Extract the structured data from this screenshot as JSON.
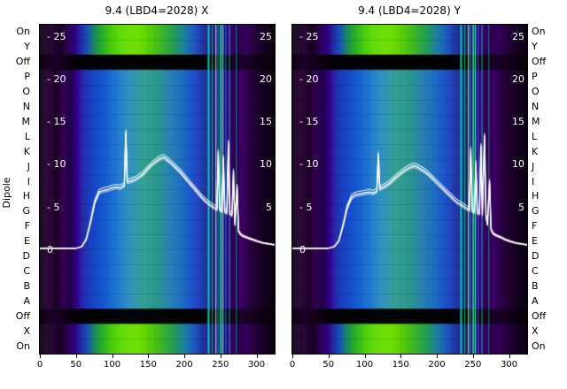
{
  "figure": {
    "background": "#ffffff",
    "dipole_label": "Dipole",
    "row_labels": [
      "On",
      "Y",
      "Off",
      "P",
      "O",
      "N",
      "M",
      "L",
      "K",
      "J",
      "I",
      "H",
      "G",
      "F",
      "E",
      "D",
      "C",
      "B",
      "A",
      "Off",
      "X",
      "On"
    ],
    "value_tick_labels_left": [
      "- 25",
      "- 20",
      "- 15",
      "- 10",
      "- 5",
      "0"
    ],
    "value_tick_values_left": [
      25,
      20,
      15,
      10,
      5,
      0
    ],
    "value_tick_labels_right": [
      "25",
      "20",
      "15",
      "10",
      "5"
    ],
    "value_tick_values_right": [
      25,
      20,
      15,
      10,
      5
    ],
    "x_tick_labels": [
      "0",
      "50",
      "100",
      "150",
      "200",
      "250",
      "300"
    ],
    "x_tick_values": [
      0,
      50,
      100,
      150,
      200,
      250,
      300
    ],
    "x_range": [
      0,
      325
    ],
    "value_range": [
      0,
      25
    ],
    "trace_color": "#ffffff",
    "text_color": "#000000"
  },
  "chart_data": [
    {
      "type": "heatmap",
      "title": "9.4 (LBD4=2028) X",
      "x_range": [
        0,
        325
      ],
      "x_ticks": [
        0,
        50,
        100,
        150,
        200,
        250,
        300
      ],
      "value_ticks": [
        0,
        5,
        10,
        15,
        20,
        25
      ],
      "row_labels": [
        "On",
        "Y",
        "Off",
        "P",
        "O",
        "N",
        "M",
        "L",
        "K",
        "J",
        "I",
        "H",
        "G",
        "F",
        "E",
        "D",
        "C",
        "B",
        "A",
        "Off",
        "X",
        "On"
      ],
      "overlay_line": {
        "name": "white-trace",
        "color": "#ffffff",
        "points": [
          [
            0,
            0.2
          ],
          [
            50,
            0.2
          ],
          [
            58,
            0.4
          ],
          [
            64,
            1.2
          ],
          [
            70,
            3.2
          ],
          [
            76,
            5.6
          ],
          [
            82,
            6.8
          ],
          [
            88,
            7.0
          ],
          [
            94,
            7.1
          ],
          [
            100,
            7.3
          ],
          [
            106,
            7.4
          ],
          [
            112,
            7.3
          ],
          [
            117,
            7.6
          ],
          [
            119,
            13.8
          ],
          [
            121,
            8.0
          ],
          [
            126,
            8.1
          ],
          [
            132,
            8.3
          ],
          [
            138,
            8.6
          ],
          [
            144,
            9.0
          ],
          [
            150,
            9.6
          ],
          [
            156,
            10.1
          ],
          [
            162,
            10.5
          ],
          [
            168,
            10.8
          ],
          [
            172,
            10.9
          ],
          [
            176,
            10.6
          ],
          [
            182,
            10.2
          ],
          [
            188,
            9.7
          ],
          [
            194,
            9.2
          ],
          [
            200,
            8.6
          ],
          [
            206,
            8.0
          ],
          [
            212,
            7.4
          ],
          [
            218,
            6.8
          ],
          [
            224,
            6.2
          ],
          [
            230,
            5.7
          ],
          [
            236,
            5.3
          ],
          [
            241,
            5.0
          ],
          [
            245,
            4.8
          ],
          [
            247,
            11.5
          ],
          [
            249,
            4.7
          ],
          [
            252,
            4.6
          ],
          [
            254,
            10.8
          ],
          [
            256,
            4.5
          ],
          [
            259,
            4.4
          ],
          [
            261,
            12.6
          ],
          [
            263,
            4.3
          ],
          [
            266,
            4.1
          ],
          [
            268,
            9.2
          ],
          [
            270,
            3.0
          ],
          [
            273,
            7.4
          ],
          [
            275,
            2.2
          ],
          [
            278,
            1.8
          ],
          [
            282,
            1.6
          ],
          [
            288,
            1.4
          ],
          [
            295,
            1.2
          ],
          [
            302,
            1.0
          ],
          [
            310,
            0.8
          ],
          [
            318,
            0.7
          ],
          [
            325,
            0.6
          ]
        ]
      }
    },
    {
      "type": "heatmap",
      "title": "9.4 (LBD4=2028) Y",
      "x_range": [
        0,
        325
      ],
      "x_ticks": [
        0,
        50,
        100,
        150,
        200,
        250,
        300
      ],
      "value_ticks": [
        0,
        5,
        10,
        15,
        20,
        25
      ],
      "row_labels": [
        "On",
        "Y",
        "Off",
        "P",
        "O",
        "N",
        "M",
        "L",
        "K",
        "J",
        "I",
        "H",
        "G",
        "F",
        "E",
        "D",
        "C",
        "B",
        "A",
        "Off",
        "X",
        "On"
      ],
      "overlay_line": {
        "name": "white-trace",
        "color": "#ffffff",
        "points": [
          [
            0,
            0.2
          ],
          [
            50,
            0.2
          ],
          [
            58,
            0.4
          ],
          [
            64,
            1.0
          ],
          [
            70,
            2.8
          ],
          [
            76,
            5.0
          ],
          [
            82,
            6.2
          ],
          [
            88,
            6.5
          ],
          [
            94,
            6.6
          ],
          [
            100,
            6.7
          ],
          [
            106,
            6.8
          ],
          [
            112,
            6.7
          ],
          [
            117,
            6.9
          ],
          [
            119,
            11.2
          ],
          [
            121,
            7.2
          ],
          [
            126,
            7.4
          ],
          [
            132,
            7.7
          ],
          [
            138,
            8.1
          ],
          [
            144,
            8.6
          ],
          [
            150,
            9.0
          ],
          [
            156,
            9.4
          ],
          [
            162,
            9.7
          ],
          [
            168,
            9.9
          ],
          [
            172,
            9.8
          ],
          [
            176,
            9.6
          ],
          [
            182,
            9.3
          ],
          [
            188,
            8.9
          ],
          [
            194,
            8.4
          ],
          [
            200,
            7.9
          ],
          [
            206,
            7.4
          ],
          [
            212,
            6.9
          ],
          [
            218,
            6.4
          ],
          [
            224,
            5.9
          ],
          [
            230,
            5.5
          ],
          [
            236,
            5.2
          ],
          [
            241,
            4.9
          ],
          [
            245,
            4.7
          ],
          [
            247,
            11.8
          ],
          [
            249,
            4.6
          ],
          [
            252,
            4.5
          ],
          [
            254,
            10.2
          ],
          [
            256,
            4.4
          ],
          [
            259,
            4.3
          ],
          [
            261,
            12.2
          ],
          [
            263,
            4.2
          ],
          [
            266,
            13.4
          ],
          [
            268,
            4.0
          ],
          [
            270,
            3.0
          ],
          [
            273,
            8.0
          ],
          [
            275,
            2.4
          ],
          [
            278,
            1.9
          ],
          [
            282,
            1.7
          ],
          [
            288,
            1.5
          ],
          [
            295,
            1.2
          ],
          [
            302,
            1.0
          ],
          [
            310,
            0.8
          ],
          [
            318,
            0.7
          ],
          [
            325,
            0.6
          ]
        ]
      }
    }
  ],
  "heatmap_render": {
    "row_types": [
      "green",
      "green",
      "off",
      "main",
      "main",
      "main",
      "main",
      "main",
      "main",
      "main",
      "main",
      "main",
      "main",
      "main",
      "main",
      "main",
      "main",
      "main",
      "main",
      "off",
      "green",
      "green"
    ],
    "palettes": {
      "main": [
        [
          0,
          "#100016"
        ],
        [
          0.04,
          "#2a0038"
        ],
        [
          0.07,
          "#1c0024"
        ],
        [
          0.1,
          "#36005a"
        ],
        [
          0.13,
          "#24004a"
        ],
        [
          0.16,
          "#3a009e"
        ],
        [
          0.18,
          "#2c2cb6"
        ],
        [
          0.21,
          "#1c44d2"
        ],
        [
          0.25,
          "#1656d8"
        ],
        [
          0.3,
          "#1a6ad6"
        ],
        [
          0.35,
          "#2080ca"
        ],
        [
          0.4,
          "#2d94b2"
        ],
        [
          0.44,
          "#35a294"
        ],
        [
          0.5,
          "#30a49a"
        ],
        [
          0.55,
          "#2d90c0"
        ],
        [
          0.6,
          "#2278ce"
        ],
        [
          0.64,
          "#1c5cd2"
        ],
        [
          0.68,
          "#2040ba"
        ],
        [
          0.71,
          "#1c2894"
        ],
        [
          0.74,
          "#141274"
        ],
        [
          0.77,
          "#220a62"
        ],
        [
          0.8,
          "#3a0084"
        ],
        [
          0.83,
          "#2c0054"
        ],
        [
          0.86,
          "#42006e"
        ],
        [
          0.9,
          "#2a0040"
        ],
        [
          0.95,
          "#180024"
        ],
        [
          1,
          "#0c0010"
        ]
      ],
      "green": [
        [
          0,
          "#100016"
        ],
        [
          0.05,
          "#260034"
        ],
        [
          0.09,
          "#1a0024"
        ],
        [
          0.12,
          "#32005a"
        ],
        [
          0.15,
          "#30008c"
        ],
        [
          0.175,
          "#2530b4"
        ],
        [
          0.2,
          "#1a55c8"
        ],
        [
          0.23,
          "#1e9070"
        ],
        [
          0.26,
          "#2ab32e"
        ],
        [
          0.3,
          "#46cc10"
        ],
        [
          0.35,
          "#5fdb02"
        ],
        [
          0.42,
          "#6ee000"
        ],
        [
          0.48,
          "#58d40e"
        ],
        [
          0.54,
          "#36bd3a"
        ],
        [
          0.58,
          "#24a46e"
        ],
        [
          0.62,
          "#1e83ae"
        ],
        [
          0.66,
          "#1e55c4"
        ],
        [
          0.7,
          "#1b2a9a"
        ],
        [
          0.73,
          "#141070"
        ],
        [
          0.77,
          "#220a62"
        ],
        [
          0.8,
          "#3a0084"
        ],
        [
          0.84,
          "#2c0054"
        ],
        [
          0.88,
          "#3c0062"
        ],
        [
          0.92,
          "#26003a"
        ],
        [
          1,
          "#0c0010"
        ]
      ],
      "off": [
        [
          0,
          "#0e0012"
        ],
        [
          0.05,
          "#1c002a"
        ],
        [
          0.1,
          "#120018"
        ],
        [
          0.15,
          "#060008"
        ],
        [
          0.2,
          "#030305"
        ],
        [
          0.5,
          "#020203"
        ],
        [
          0.75,
          "#040406"
        ],
        [
          0.82,
          "#10001c"
        ],
        [
          0.88,
          "#1a0028"
        ],
        [
          0.94,
          "#0e0014"
        ],
        [
          1,
          "#080009"
        ]
      ]
    },
    "stripes": [
      [
        0.715,
        "#00e0c8",
        2,
        0.9
      ],
      [
        0.733,
        "#28e06a",
        1,
        0.85
      ],
      [
        0.748,
        "#c8ffd8",
        1,
        0.95
      ],
      [
        0.757,
        "#00c8ff",
        1,
        0.8
      ],
      [
        0.767,
        "#18e890",
        2,
        0.9
      ],
      [
        0.778,
        "#80ffff",
        1,
        0.95
      ],
      [
        0.79,
        "#00a0ff",
        1,
        0.8
      ],
      [
        0.806,
        "#38d0a0",
        1,
        0.8
      ],
      [
        0.835,
        "#22b890",
        1,
        0.7
      ]
    ],
    "trace_offsets": [
      0,
      -3,
      2
    ]
  }
}
